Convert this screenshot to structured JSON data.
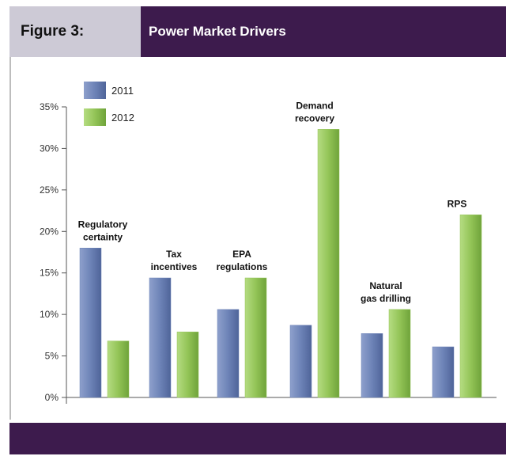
{
  "header": {
    "figure_label": "Figure 3:",
    "title": "Power Market Drivers"
  },
  "colors": {
    "header_bg": "#3d1b4d",
    "label_bg": "#cdcad6",
    "series_2011": "#6d83b7",
    "series_2012": "#93c457"
  },
  "chart_data": {
    "type": "bar",
    "title": "Power Market Drivers",
    "categories": [
      [
        "Regulatory",
        "certainty"
      ],
      [
        "Tax",
        "incentives"
      ],
      [
        "EPA",
        "regulations"
      ],
      [
        "Demand",
        "recovery"
      ],
      [
        "Natural",
        "gas drilling"
      ],
      [
        "RPS"
      ]
    ],
    "series": [
      {
        "name": "2011",
        "values": [
          18,
          14.4,
          10.6,
          8.7,
          7.7,
          6.1
        ]
      },
      {
        "name": "2012",
        "values": [
          6.8,
          7.9,
          14.4,
          32.3,
          10.6,
          22
        ]
      }
    ],
    "ylim": [
      0,
      35
    ],
    "yticks": [
      "0%",
      "5%",
      "10%",
      "15%",
      "20%",
      "25%",
      "30%",
      "35%"
    ],
    "ytick_values": [
      0,
      5,
      10,
      15,
      20,
      25,
      30,
      35
    ],
    "legend_position": "top-left",
    "grid": false
  }
}
